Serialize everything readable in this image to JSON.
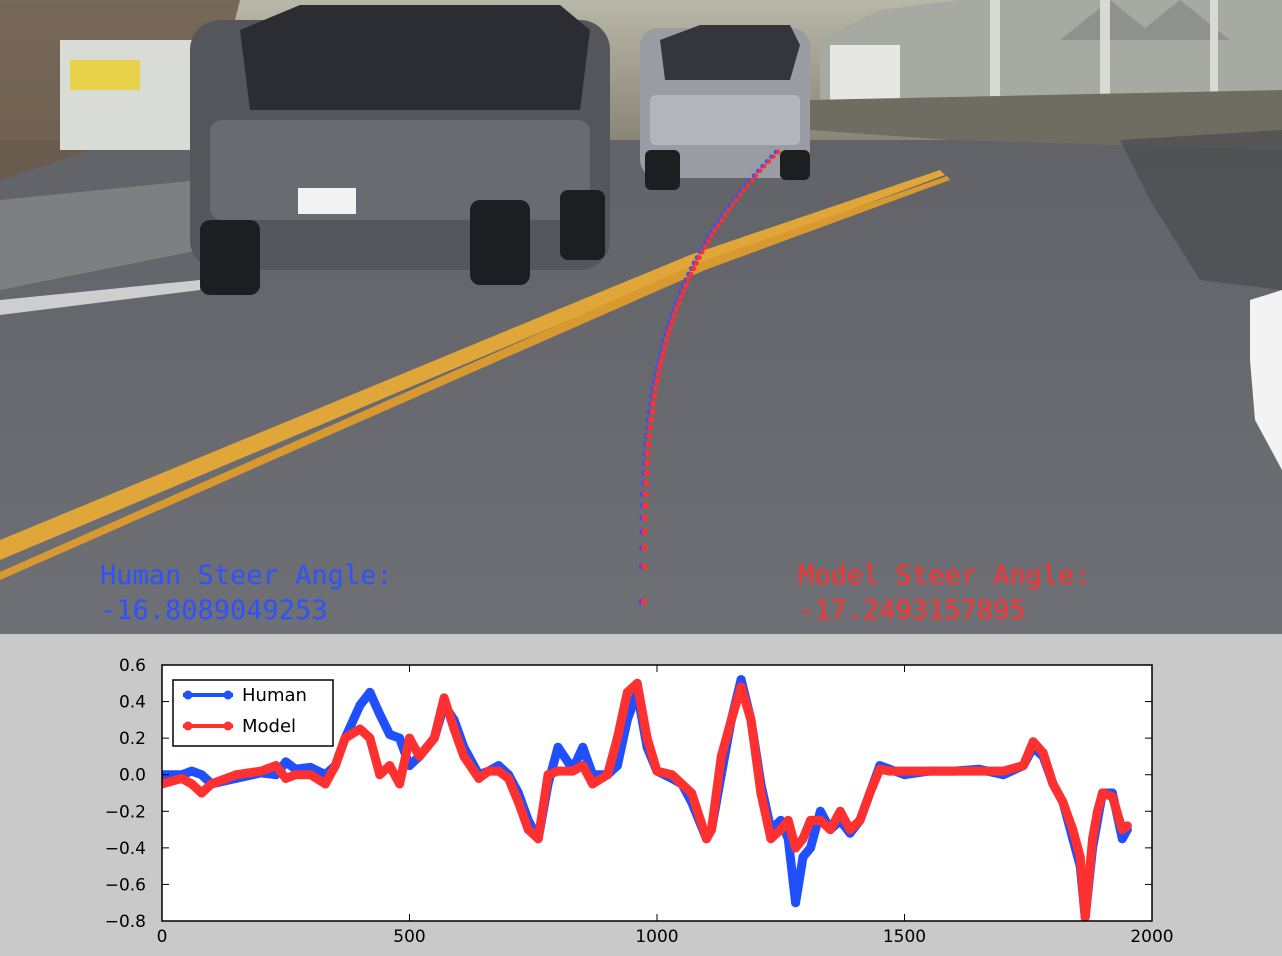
{
  "overlay": {
    "human_label": "Human Steer Angle:",
    "human_value": "-16.8089049253",
    "model_label": "Model Steer Angle:",
    "model_value": "-17.2493157895",
    "human_color": "#2f52ff",
    "model_color": "#ff3030"
  },
  "chart_data": {
    "type": "line",
    "title": "",
    "xlabel": "",
    "ylabel": "",
    "xlim": [
      0,
      2000
    ],
    "ylim": [
      -0.8,
      0.6
    ],
    "xticks": [
      0,
      500,
      1000,
      1500,
      2000
    ],
    "yticks": [
      0.6,
      0.4,
      0.2,
      0.0,
      -0.2,
      -0.4,
      -0.6,
      -0.8
    ],
    "ytick_labels": [
      "0.6",
      "0.4",
      "0.2",
      "0.0",
      "−0.2",
      "−0.4",
      "−0.6",
      "−0.8"
    ],
    "grid": false,
    "legend": "top-left",
    "series": [
      {
        "name": "Human",
        "color": "#1f4fff",
        "x": [
          0,
          40,
          60,
          80,
          100,
          150,
          200,
          230,
          250,
          270,
          300,
          330,
          350,
          370,
          400,
          420,
          440,
          460,
          480,
          500,
          520,
          550,
          570,
          590,
          610,
          640,
          660,
          680,
          700,
          720,
          740,
          760,
          780,
          800,
          830,
          850,
          870,
          900,
          920,
          940,
          960,
          980,
          1000,
          1030,
          1050,
          1070,
          1100,
          1110,
          1130,
          1150,
          1170,
          1190,
          1210,
          1230,
          1250,
          1265,
          1280,
          1295,
          1310,
          1330,
          1350,
          1370,
          1390,
          1410,
          1430,
          1450,
          1470,
          1500,
          1550,
          1600,
          1650,
          1700,
          1740,
          1760,
          1780,
          1800,
          1820,
          1840,
          1855,
          1865,
          1880,
          1890,
          1900,
          1920,
          1940,
          1950
        ],
        "y": [
          0.0,
          0.0,
          0.02,
          0.0,
          -0.05,
          -0.02,
          0.01,
          0.0,
          0.07,
          0.03,
          0.04,
          0.0,
          0.05,
          0.2,
          0.38,
          0.45,
          0.33,
          0.22,
          0.2,
          0.05,
          0.1,
          0.2,
          0.38,
          0.3,
          0.15,
          0.0,
          0.02,
          0.05,
          0.0,
          -0.1,
          -0.25,
          -0.35,
          -0.05,
          0.15,
          0.03,
          0.15,
          0.0,
          0.0,
          0.05,
          0.3,
          0.45,
          0.15,
          0.02,
          -0.02,
          -0.05,
          -0.15,
          -0.35,
          -0.3,
          0.0,
          0.3,
          0.52,
          0.3,
          -0.05,
          -0.3,
          -0.25,
          -0.35,
          -0.7,
          -0.45,
          -0.4,
          -0.2,
          -0.3,
          -0.25,
          -0.32,
          -0.25,
          -0.1,
          0.05,
          0.03,
          0.0,
          0.02,
          0.02,
          0.03,
          0.0,
          0.05,
          0.15,
          0.1,
          -0.05,
          -0.15,
          -0.35,
          -0.5,
          -0.78,
          -0.4,
          -0.25,
          -0.1,
          -0.1,
          -0.35,
          -0.3
        ]
      },
      {
        "name": "Model",
        "color": "#ff3030",
        "x": [
          0,
          40,
          60,
          80,
          100,
          150,
          200,
          230,
          250,
          270,
          300,
          330,
          350,
          370,
          400,
          420,
          440,
          460,
          480,
          500,
          520,
          550,
          570,
          590,
          610,
          640,
          660,
          680,
          700,
          720,
          740,
          760,
          780,
          800,
          830,
          850,
          870,
          900,
          920,
          940,
          960,
          980,
          1000,
          1030,
          1050,
          1070,
          1100,
          1110,
          1130,
          1150,
          1170,
          1190,
          1210,
          1230,
          1250,
          1265,
          1280,
          1295,
          1310,
          1330,
          1350,
          1370,
          1390,
          1410,
          1430,
          1450,
          1470,
          1500,
          1550,
          1600,
          1650,
          1700,
          1740,
          1760,
          1780,
          1800,
          1820,
          1840,
          1855,
          1865,
          1880,
          1890,
          1900,
          1920,
          1940,
          1950
        ],
        "y": [
          -0.05,
          -0.02,
          -0.05,
          -0.1,
          -0.05,
          0.0,
          0.02,
          0.05,
          -0.02,
          0.0,
          0.0,
          -0.05,
          0.05,
          0.2,
          0.25,
          0.2,
          0.0,
          0.05,
          -0.05,
          0.2,
          0.1,
          0.2,
          0.42,
          0.25,
          0.1,
          -0.02,
          0.02,
          0.02,
          -0.02,
          -0.15,
          -0.3,
          -0.35,
          0.0,
          0.02,
          0.02,
          0.05,
          -0.05,
          0.0,
          0.2,
          0.45,
          0.5,
          0.2,
          0.02,
          0.0,
          -0.05,
          -0.1,
          -0.35,
          -0.3,
          0.1,
          0.3,
          0.48,
          0.3,
          -0.1,
          -0.35,
          -0.3,
          -0.25,
          -0.4,
          -0.35,
          -0.25,
          -0.25,
          -0.3,
          -0.2,
          -0.3,
          -0.25,
          -0.1,
          0.03,
          0.02,
          0.02,
          0.02,
          0.02,
          0.02,
          0.02,
          0.05,
          0.18,
          0.12,
          -0.05,
          -0.15,
          -0.3,
          -0.45,
          -0.78,
          -0.35,
          -0.2,
          -0.1,
          -0.12,
          -0.3,
          -0.28
        ]
      }
    ]
  }
}
